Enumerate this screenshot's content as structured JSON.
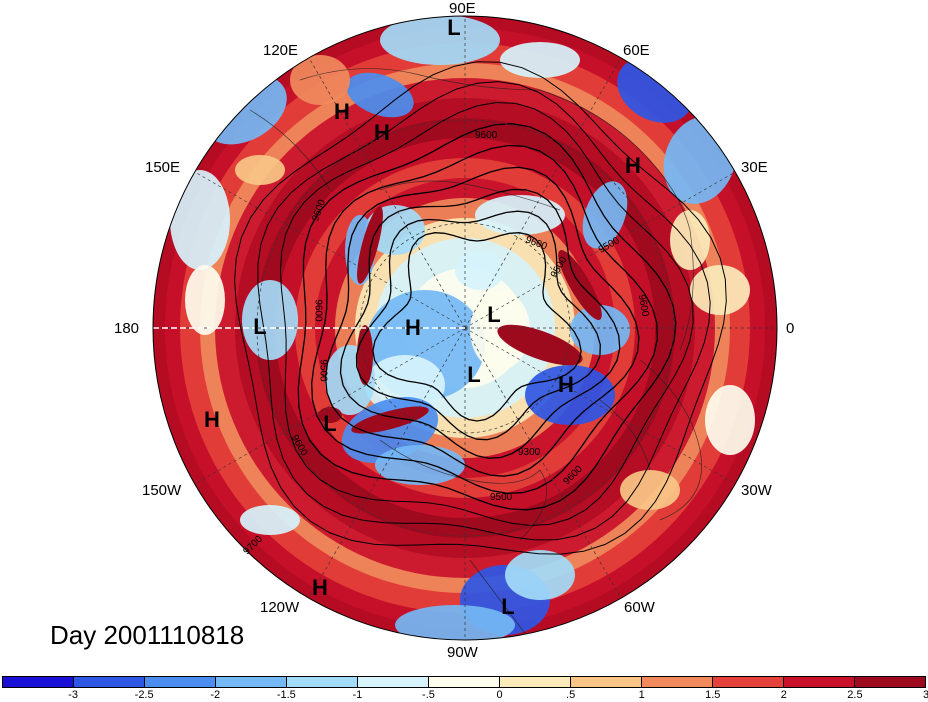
{
  "title": "Day 2001110818",
  "longitude_labels": [
    "90E",
    "60E",
    "30E",
    "0",
    "30W",
    "60W",
    "90W",
    "120W",
    "150W",
    "180",
    "150E",
    "120E"
  ],
  "pressure_systems": [
    "L",
    "H",
    "H",
    "H",
    "L",
    "L",
    "H",
    "L",
    "L",
    "H",
    "L",
    "H",
    "H",
    "L"
  ],
  "contour_labels": [
    "9600",
    "9600",
    "9500",
    "9600",
    "9500",
    "9600",
    "9500",
    "9600",
    "9300",
    "9500",
    "9600",
    "9600",
    "9700"
  ],
  "colorbar": {
    "ticks": [
      "-3",
      "-2.5",
      "-2",
      "-1.5",
      "-1",
      "-.5",
      "0",
      ".5",
      "1",
      "1.5",
      "2",
      "2.5",
      "3"
    ],
    "colors": [
      "#1a0fd6",
      "#2e57e6",
      "#4c8ef0",
      "#74b8f5",
      "#a3dcf9",
      "#d6f3fc",
      "#fdfdee",
      "#fbebbb",
      "#f8c587",
      "#f08a5c",
      "#e4413a",
      "#c8102a",
      "#9d0a1e"
    ]
  }
}
